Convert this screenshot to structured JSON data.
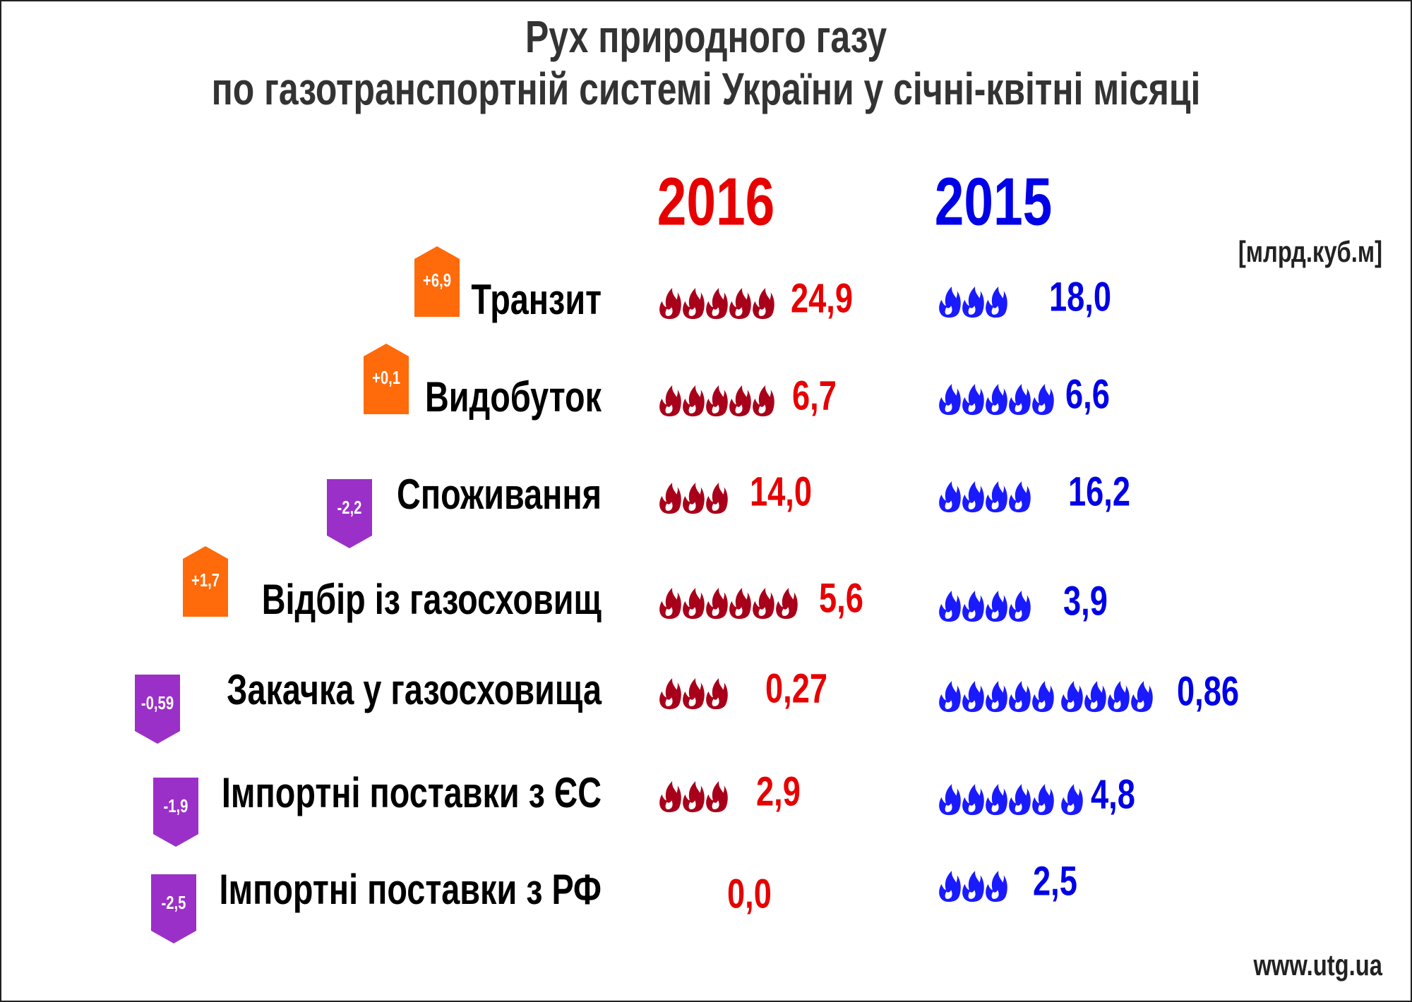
{
  "header": {
    "title_line1": "Рух природного газу",
    "title_line2": "по газотранспортній системі України у січні-квітні місяці"
  },
  "years": [
    "2016",
    "2015"
  ],
  "unit": "[млрд.куб.м]",
  "rows": [
    {
      "label": "Транзит",
      "change": "+6,9",
      "value_2016": "24,9",
      "value_2015": "18,0"
    },
    {
      "label": "Видобуток",
      "change": "+0,1",
      "value_2016": "6,7",
      "value_2015": "6,6"
    },
    {
      "label": "Споживання",
      "change": "-2,2",
      "value_2016": "14,0",
      "value_2015": "16,2"
    },
    {
      "label": "Відбір із газосховищ",
      "change": "+1,7",
      "value_2016": "5,6",
      "value_2015": "3,9"
    },
    {
      "label": "Закачка у газосховища",
      "change": "-0,59",
      "value_2016": "0,27",
      "value_2015": "0,86"
    },
    {
      "label": "Імпортні поставки з ЄС",
      "change": "-1,9",
      "value_2016": "2,9",
      "value_2015": "4,8"
    },
    {
      "label": "Імпортні поставки з РФ",
      "change": "-2,5",
      "value_2016": "0,0",
      "value_2015": "2,5"
    }
  ],
  "footer": "www.utg.ua"
}
